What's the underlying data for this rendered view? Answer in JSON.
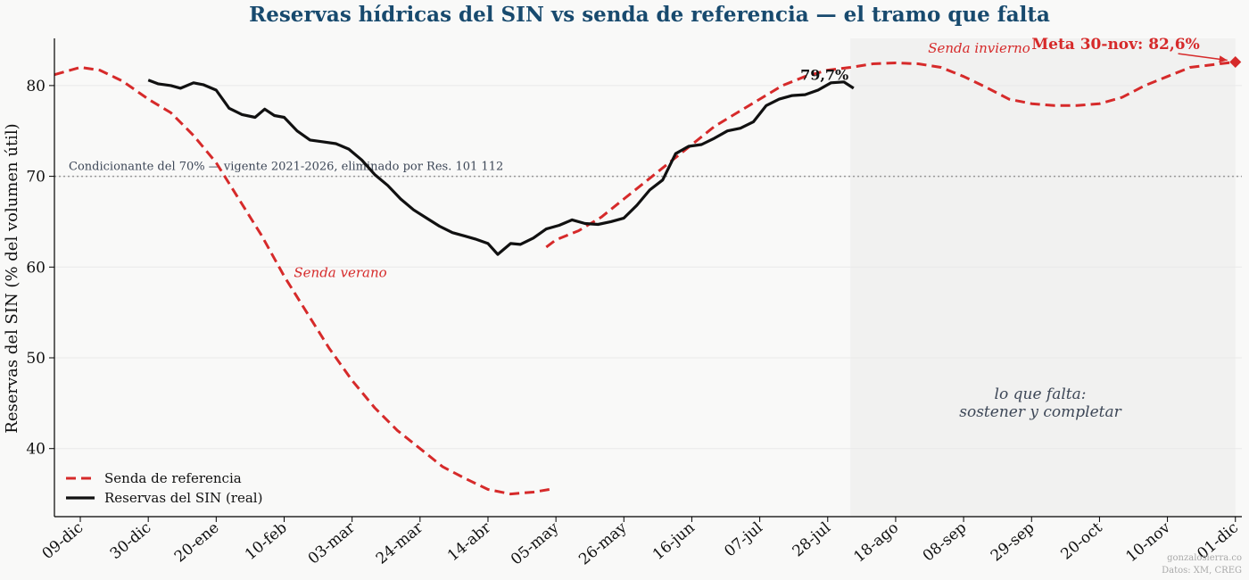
{
  "chart_data": {
    "type": "line",
    "title": "Reservas hídricas del SIN vs senda de referencia — el tramo que falta",
    "ylabel": "Reservas del SIN (% del volumen útil)",
    "xlabel": "",
    "ylim": [
      32.5,
      85.2
    ],
    "yticks": [
      40,
      50,
      60,
      70,
      80
    ],
    "x_axis": {
      "start": "2024-12-01",
      "end": "2025-12-03",
      "ticks": [
        {
          "date": "2024-12-09",
          "label": "09-dic"
        },
        {
          "date": "2024-12-30",
          "label": "30-dic"
        },
        {
          "date": "2025-01-20",
          "label": "20-ene"
        },
        {
          "date": "2025-02-10",
          "label": "10-feb"
        },
        {
          "date": "2025-03-03",
          "label": "03-mar"
        },
        {
          "date": "2025-03-24",
          "label": "24-mar"
        },
        {
          "date": "2025-04-14",
          "label": "14-abr"
        },
        {
          "date": "2025-05-05",
          "label": "05-may"
        },
        {
          "date": "2025-05-26",
          "label": "26-may"
        },
        {
          "date": "2025-06-16",
          "label": "16-jun"
        },
        {
          "date": "2025-07-07",
          "label": "07-jul"
        },
        {
          "date": "2025-07-28",
          "label": "28-jul"
        },
        {
          "date": "2025-08-18",
          "label": "18-ago"
        },
        {
          "date": "2025-09-08",
          "label": "08-sep"
        },
        {
          "date": "2025-09-29",
          "label": "29-sep"
        },
        {
          "date": "2025-10-20",
          "label": "20-oct"
        },
        {
          "date": "2025-11-10",
          "label": "10-nov"
        },
        {
          "date": "2025-12-01",
          "label": "01-dic"
        }
      ]
    },
    "grid": "horizontal",
    "legend_position": "bottom-left",
    "shaded_region": {
      "from": "2025-08-04",
      "to": "2025-12-01",
      "color": "#f1f1f0"
    },
    "threshold": {
      "y": 70,
      "label": "Condicionante del 70% — vigente 2021-2026, eliminado por Res. 101 112"
    },
    "series": [
      {
        "name": "Senda de referencia",
        "color": "#d62a2a",
        "style": "dashed",
        "segments": [
          {
            "x": [
              "2024-12-01",
              "2024-12-09",
              "2024-12-15",
              "2024-12-22",
              "2024-12-30",
              "2025-01-06",
              "2025-01-13",
              "2025-01-20",
              "2025-01-27",
              "2025-02-03",
              "2025-02-10",
              "2025-02-17",
              "2025-02-24",
              "2025-03-03",
              "2025-03-10",
              "2025-03-17",
              "2025-03-24",
              "2025-03-31",
              "2025-04-07",
              "2025-04-14",
              "2025-04-21",
              "2025-04-28",
              "2025-05-03"
            ],
            "y": [
              81.2,
              82.0,
              81.7,
              80.5,
              78.5,
              77.0,
              74.5,
              71.5,
              67.5,
              63.5,
              59.0,
              55.0,
              51.0,
              47.5,
              44.5,
              42.0,
              40.0,
              38.0,
              36.7,
              35.5,
              35.0,
              35.2,
              35.5
            ]
          },
          {
            "x": [
              "2025-05-02",
              "2025-05-05",
              "2025-05-12",
              "2025-05-19",
              "2025-05-26",
              "2025-06-02",
              "2025-06-09",
              "2025-06-16",
              "2025-06-23",
              "2025-06-30",
              "2025-07-07",
              "2025-07-14",
              "2025-07-21",
              "2025-07-28",
              "2025-08-04",
              "2025-08-11",
              "2025-08-18",
              "2025-08-25",
              "2025-09-01",
              "2025-09-08",
              "2025-09-15",
              "2025-09-22",
              "2025-09-29",
              "2025-10-06",
              "2025-10-13",
              "2025-10-20",
              "2025-10-27",
              "2025-11-03",
              "2025-11-10",
              "2025-11-17",
              "2025-11-24",
              "2025-12-01"
            ],
            "y": [
              62.2,
              63.0,
              64.0,
              65.5,
              67.5,
              69.5,
              71.5,
              73.5,
              75.5,
              77.0,
              78.5,
              80.0,
              81.0,
              81.7,
              82.0,
              82.4,
              82.5,
              82.4,
              82.0,
              81.0,
              79.8,
              78.5,
              78.0,
              77.8,
              77.8,
              78.0,
              78.7,
              80.0,
              81.0,
              82.0,
              82.3,
              82.6
            ]
          }
        ]
      },
      {
        "name": "Reservas del SIN (real)",
        "color": "#111111",
        "style": "solid",
        "x": [
          "2024-12-30",
          "2025-01-02",
          "2025-01-06",
          "2025-01-09",
          "2025-01-13",
          "2025-01-16",
          "2025-01-20",
          "2025-01-24",
          "2025-01-28",
          "2025-02-01",
          "2025-02-04",
          "2025-02-07",
          "2025-02-10",
          "2025-02-14",
          "2025-02-18",
          "2025-02-22",
          "2025-02-26",
          "2025-03-02",
          "2025-03-06",
          "2025-03-10",
          "2025-03-14",
          "2025-03-18",
          "2025-03-22",
          "2025-03-26",
          "2025-03-30",
          "2025-04-03",
          "2025-04-07",
          "2025-04-10",
          "2025-04-14",
          "2025-04-17",
          "2025-04-21",
          "2025-04-24",
          "2025-04-28",
          "2025-05-02",
          "2025-05-06",
          "2025-05-10",
          "2025-05-14",
          "2025-05-18",
          "2025-05-22",
          "2025-05-26",
          "2025-05-30",
          "2025-06-03",
          "2025-06-07",
          "2025-06-11",
          "2025-06-15",
          "2025-06-19",
          "2025-06-23",
          "2025-06-27",
          "2025-07-01",
          "2025-07-05",
          "2025-07-09",
          "2025-07-13",
          "2025-07-17",
          "2025-07-21",
          "2025-07-25",
          "2025-07-29",
          "2025-08-02",
          "2025-08-05"
        ],
        "y": [
          80.6,
          80.2,
          80.0,
          79.7,
          80.3,
          80.1,
          79.5,
          77.5,
          76.8,
          76.5,
          77.4,
          76.7,
          76.5,
          75.0,
          74.0,
          73.8,
          73.6,
          73.0,
          71.8,
          70.2,
          69.0,
          67.5,
          66.3,
          65.4,
          64.5,
          63.8,
          63.4,
          63.1,
          62.6,
          61.4,
          62.6,
          62.5,
          63.2,
          64.2,
          64.6,
          65.2,
          64.8,
          64.7,
          65.0,
          65.4,
          66.8,
          68.5,
          69.6,
          72.5,
          73.3,
          73.5,
          74.2,
          75.0,
          75.3,
          76.0,
          77.8,
          78.5,
          78.9,
          79.0,
          79.5,
          80.3,
          80.4,
          79.7
        ]
      }
    ],
    "annotations": {
      "senda_verano": {
        "text": "Senda verano",
        "x": "2025-02-13",
        "y": 59.4
      },
      "senda_invierno": {
        "text": "Senda invierno",
        "x": "2025-08-28",
        "y": 84.1
      },
      "last_value": {
        "text": "79,7%",
        "x": "2025-07-27",
        "y": 81.2
      },
      "meta": {
        "text": "Meta 30-nov: 82,6%",
        "x": "2025-12-01",
        "y": 82.6,
        "text_x": "2025-10-25",
        "text_y": 84.5
      },
      "gap_line1": "lo que falta:",
      "gap_line2": "sostener y completar"
    },
    "credit_line1": "gonzalosierra.co",
    "credit_line2": "Datos: XM, CREG"
  }
}
